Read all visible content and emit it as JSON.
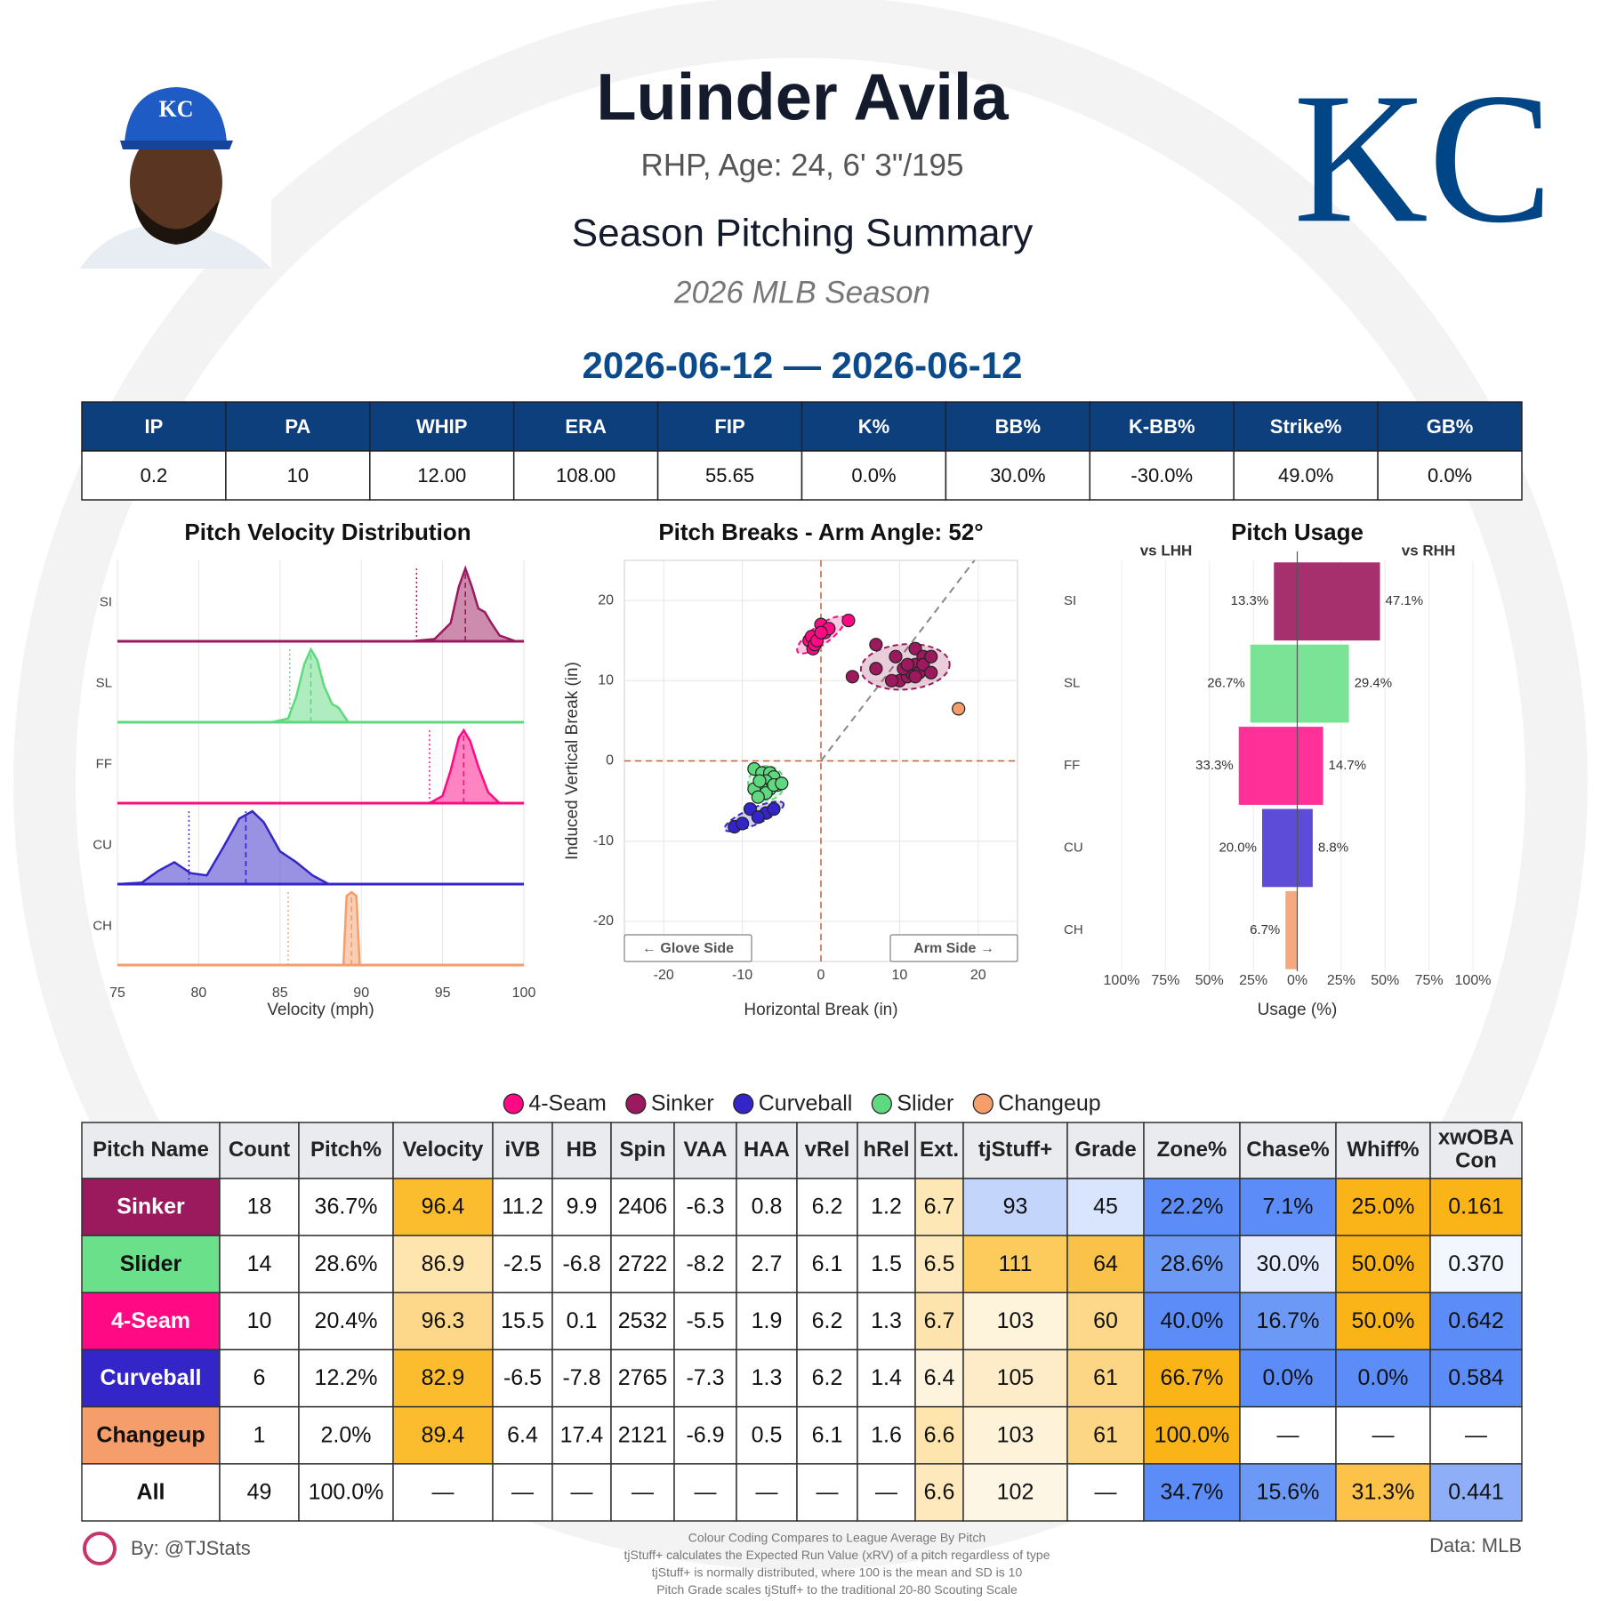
{
  "header": {
    "name": "Luinder Avila",
    "bio": "RHP, Age: 24, 6' 3\"/195",
    "title": "Season Pitching Summary",
    "season": "2026 MLB Season",
    "date_range": "2026-06-12 — 2026-06-12",
    "logo": "KC"
  },
  "summary_table": {
    "columns": [
      "IP",
      "PA",
      "WHIP",
      "ERA",
      "FIP",
      "K%",
      "BB%",
      "K-BB%",
      "Strike%",
      "GB%"
    ],
    "values": [
      "0.2",
      "10",
      "12.00",
      "108.00",
      "55.65",
      "0.0%",
      "30.0%",
      "-30.0%",
      "49.0%",
      "0.0%"
    ]
  },
  "chart_data": [
    {
      "type": "density",
      "title": "Pitch Velocity Distribution",
      "xlabel": "Velocity (mph)",
      "xlim": [
        75,
        100
      ],
      "xticks": [
        75,
        80,
        85,
        90,
        95,
        100
      ],
      "grid": true,
      "categories": [
        "SI",
        "SL",
        "FF",
        "CU",
        "CH"
      ],
      "series": [
        {
          "color": "#9b1a5d",
          "mean": 96.4,
          "league_mean": 93.4,
          "x": [
            75,
            93,
            94.5,
            95.5,
            96,
            96.4,
            96.8,
            97.2,
            97.6,
            98,
            98.5,
            99.5,
            100
          ],
          "values": [
            0,
            0,
            0.03,
            0.25,
            0.75,
            1,
            0.75,
            0.45,
            0.4,
            0.25,
            0.08,
            0,
            0
          ]
        },
        {
          "color": "#5fd97f",
          "mean": 86.9,
          "league_mean": 85.6,
          "x": [
            75,
            84.5,
            85.5,
            86,
            86.5,
            86.9,
            87.3,
            87.7,
            88.2,
            88.6,
            89.2,
            100
          ],
          "values": [
            0,
            0,
            0.05,
            0.35,
            0.8,
            1,
            0.85,
            0.5,
            0.25,
            0.2,
            0,
            0
          ]
        },
        {
          "color": "#ff0a84",
          "mean": 96.3,
          "league_mean": 94.2,
          "x": [
            75,
            94.2,
            95,
            95.5,
            96,
            96.3,
            96.7,
            97.2,
            97.8,
            98.5,
            100
          ],
          "values": [
            0,
            0,
            0.1,
            0.45,
            0.9,
            1,
            0.85,
            0.5,
            0.15,
            0,
            0
          ]
        },
        {
          "color": "#3325c8",
          "mean": 82.9,
          "league_mean": 79.4,
          "x": [
            75,
            76.5,
            77.5,
            78.5,
            79.5,
            80.5,
            81.5,
            82.5,
            83.3,
            84,
            85,
            86,
            87,
            88,
            100
          ],
          "values": [
            0,
            0.02,
            0.18,
            0.3,
            0.15,
            0.12,
            0.5,
            0.9,
            1,
            0.85,
            0.45,
            0.3,
            0.12,
            0,
            0
          ]
        },
        {
          "color": "#f59e6b",
          "mean": 89.4,
          "league_mean": 85.5,
          "x": [
            75,
            88.9,
            89.1,
            89.4,
            89.7,
            89.9,
            100
          ],
          "values": [
            0,
            0,
            0.95,
            1,
            0.95,
            0,
            0
          ]
        }
      ]
    },
    {
      "type": "scatter",
      "title": "Pitch Breaks - Arm Angle: 52°",
      "arm_angle": 52,
      "xlabel": "Horizontal Break (in)",
      "ylabel": "Induced Vertical Break (in)",
      "xlim": [
        -25,
        25
      ],
      "ylim": [
        -25,
        25
      ],
      "xticks": [
        -20,
        -10,
        0,
        10,
        20
      ],
      "yticks": [
        -20,
        -10,
        0,
        10,
        20
      ],
      "grid": true,
      "annotations": [
        "← Glove Side",
        "Arm Side →"
      ],
      "series": [
        {
          "name": "4-Seam",
          "color": "#ff0a84",
          "x": [
            -1.5,
            -1,
            -1.2,
            -0.8,
            0,
            0.5,
            1,
            3.5,
            -0.5,
            0
          ],
          "y": [
            15,
            14,
            15.5,
            14.5,
            17,
            16,
            16.5,
            17.5,
            15,
            16
          ]
        },
        {
          "name": "Sinker",
          "color": "#9b1a5d",
          "x": [
            4,
            7,
            7,
            9.5,
            10,
            11,
            11.5,
            12,
            12.5,
            12,
            13,
            10.5,
            13,
            14,
            9,
            12,
            11,
            14
          ],
          "y": [
            10.5,
            11.5,
            14.5,
            13,
            10,
            10.5,
            11,
            12,
            11,
            14,
            13,
            11.5,
            12,
            11,
            10,
            10.5,
            12,
            13
          ]
        },
        {
          "name": "Curveball",
          "color": "#3325c8",
          "x": [
            -11,
            -10,
            -9,
            -7,
            -6,
            -8
          ],
          "y": [
            -8.2,
            -7.8,
            -6,
            -6.5,
            -6,
            -7
          ]
        },
        {
          "name": "Slider",
          "color": "#5fd97f",
          "x": [
            -8.5,
            -7.5,
            -6.5,
            -6,
            -7,
            -5.5,
            -6.5,
            -7.5,
            -8.5,
            -7,
            -8,
            -6,
            -7.8,
            -5
          ],
          "y": [
            -1,
            -1.5,
            -1.5,
            -2,
            -2.5,
            -3,
            -3.5,
            -3.5,
            -3.5,
            -4,
            -4.5,
            -3,
            -2.5,
            -2.8
          ]
        },
        {
          "name": "Changeup",
          "color": "#f59e6b",
          "x": [
            17.5
          ],
          "y": [
            6.5
          ]
        }
      ]
    },
    {
      "type": "butterfly",
      "title": "Pitch Usage",
      "xlabel": "Usage (%)",
      "xlim": [
        -100,
        100
      ],
      "xticks": [
        {
          "value": -100,
          "label": "100%"
        },
        {
          "value": -75,
          "label": "75%"
        },
        {
          "value": -50,
          "label": "50%"
        },
        {
          "value": -25,
          "label": "25%"
        },
        {
          "value": 0,
          "label": "0%"
        },
        {
          "value": 25,
          "label": "25%"
        },
        {
          "value": 50,
          "label": "50%"
        },
        {
          "value": 75,
          "label": "75%"
        },
        {
          "value": 100,
          "label": "100%"
        }
      ],
      "grid": true,
      "categories": [
        "SI",
        "SL",
        "FF",
        "CU",
        "CH"
      ],
      "colors": [
        "#9b1a5d",
        "#6be08a",
        "#ff1a8c",
        "#4a38d4",
        "#f5a070"
      ],
      "series": [
        {
          "name": "vs LHH",
          "side": "left",
          "values": [
            13.3,
            26.7,
            33.3,
            20.0,
            6.7
          ],
          "value_labels": [
            "13.3%",
            "26.7%",
            "33.3%",
            "20.0%",
            "6.7%"
          ]
        },
        {
          "name": "vs RHH",
          "side": "right",
          "values": [
            47.1,
            29.4,
            14.7,
            8.8,
            0
          ],
          "value_labels": [
            "47.1%",
            "29.4%",
            "14.7%",
            "8.8%",
            null
          ]
        }
      ]
    }
  ],
  "pitch_table": {
    "columns": [
      "Pitch Name",
      "Count",
      "Pitch%",
      "Velocity",
      "iVB",
      "HB",
      "Spin",
      "VAA",
      "HAA",
      "vRel",
      "hRel",
      "Ext.",
      "tjStuff+",
      "Grade",
      "Zone%",
      "Chase%",
      "Whiff%",
      "xwOBA Con"
    ],
    "rows": [
      {
        "name_color": "#ffffff",
        "cells": [
          "Sinker",
          "18",
          "36.7%",
          "96.4",
          "11.2",
          "9.9",
          "2406",
          "-6.3",
          "0.8",
          "6.2",
          "1.2",
          "6.7",
          "93",
          "45",
          "22.2%",
          "7.1%",
          "25.0%",
          "0.161"
        ],
        "fills": [
          "#9b1a5d",
          "#ffffff",
          "#ffffff",
          "#fbbd2e",
          "#ffffff",
          "#ffffff",
          "#ffffff",
          "#ffffff",
          "#ffffff",
          "#ffffff",
          "#ffffff",
          "#fde8b5",
          "#c3d5fb",
          "#d9e4fd",
          "#5b8cf7",
          "#5b8cf7",
          "#fab418",
          "#fab418"
        ]
      },
      {
        "name_color": "#111111",
        "cells": [
          "Slider",
          "14",
          "28.6%",
          "86.9",
          "-2.5",
          "-6.8",
          "2722",
          "-8.2",
          "2.7",
          "6.1",
          "1.5",
          "6.5",
          "111",
          "64",
          "28.6%",
          "30.0%",
          "50.0%",
          "0.370"
        ],
        "fills": [
          "#6be08a",
          "#ffffff",
          "#ffffff",
          "#fee5ae",
          "#ffffff",
          "#ffffff",
          "#ffffff",
          "#ffffff",
          "#ffffff",
          "#ffffff",
          "#ffffff",
          "#fee9bc",
          "#fccb5c",
          "#fbc24a",
          "#6c98f6",
          "#e3ebfd",
          "#fab418",
          "#f2f6fe"
        ]
      },
      {
        "name_color": "#ffffff",
        "cells": [
          "4-Seam",
          "10",
          "20.4%",
          "96.3",
          "15.5",
          "0.1",
          "2532",
          "-5.5",
          "1.9",
          "6.2",
          "1.3",
          "6.7",
          "103",
          "60",
          "40.0%",
          "16.7%",
          "50.0%",
          "0.642"
        ],
        "fills": [
          "#ff0a84",
          "#ffffff",
          "#ffffff",
          "#fdd88a",
          "#ffffff",
          "#ffffff",
          "#ffffff",
          "#ffffff",
          "#ffffff",
          "#ffffff",
          "#ffffff",
          "#fde4ad",
          "#fef3db",
          "#fdd88a",
          "#5b8cf7",
          "#6c98f6",
          "#fab418",
          "#5b8cf7"
        ]
      },
      {
        "name_color": "#ffffff",
        "cells": [
          "Curveball",
          "6",
          "12.2%",
          "82.9",
          "-6.5",
          "-7.8",
          "2765",
          "-7.3",
          "1.3",
          "6.2",
          "1.4",
          "6.4",
          "105",
          "61",
          "66.7%",
          "0.0%",
          "0.0%",
          "0.584"
        ],
        "fills": [
          "#3325c8",
          "#ffffff",
          "#ffffff",
          "#fbbd2e",
          "#ffffff",
          "#ffffff",
          "#ffffff",
          "#ffffff",
          "#ffffff",
          "#ffffff",
          "#ffffff",
          "#fef3dc",
          "#feecc8",
          "#fdd685",
          "#fab418",
          "#5b8cf7",
          "#5b8cf7",
          "#5b8cf7"
        ]
      },
      {
        "name_color": "#111111",
        "cells": [
          "Changeup",
          "1",
          "2.0%",
          "89.4",
          "6.4",
          "17.4",
          "2121",
          "-6.9",
          "0.5",
          "6.1",
          "1.6",
          "6.6",
          "103",
          "61",
          "100.0%",
          "—",
          "—",
          "—"
        ],
        "fills": [
          "#f59e6b",
          "#ffffff",
          "#ffffff",
          "#fbbd2e",
          "#ffffff",
          "#ffffff",
          "#ffffff",
          "#ffffff",
          "#ffffff",
          "#ffffff",
          "#ffffff",
          "#fee5ae",
          "#fef2d9",
          "#fdd685",
          "#fab418",
          "#ffffff",
          "#ffffff",
          "#ffffff"
        ]
      },
      {
        "name_color": "#111111",
        "cells": [
          "All",
          "49",
          "100.0%",
          "—",
          "—",
          "—",
          "—",
          "—",
          "—",
          "—",
          "—",
          "6.6",
          "102",
          "—",
          "34.7%",
          "15.6%",
          "31.3%",
          "0.441"
        ],
        "fills": [
          "#ffffff",
          "#ffffff",
          "#ffffff",
          "#ffffff",
          "#ffffff",
          "#ffffff",
          "#ffffff",
          "#ffffff",
          "#ffffff",
          "#ffffff",
          "#ffffff",
          "#fee9bc",
          "#fef6e4",
          "#ffffff",
          "#5b8cf7",
          "#6c98f6",
          "#fcc24a",
          "#8eaff8"
        ]
      }
    ]
  },
  "footer": {
    "credit": "By: @TJStats",
    "source": "Data: MLB",
    "notes": [
      "Colour Coding Compares to League Average By Pitch",
      "tjStuff+ calculates the Expected Run Value (xRV) of a pitch regardless of type",
      "tjStuff+ is normally distributed, where 100 is the mean and SD is 10",
      "Pitch Grade scales tjStuff+ to the traditional 20-80 Scouting Scale"
    ]
  }
}
